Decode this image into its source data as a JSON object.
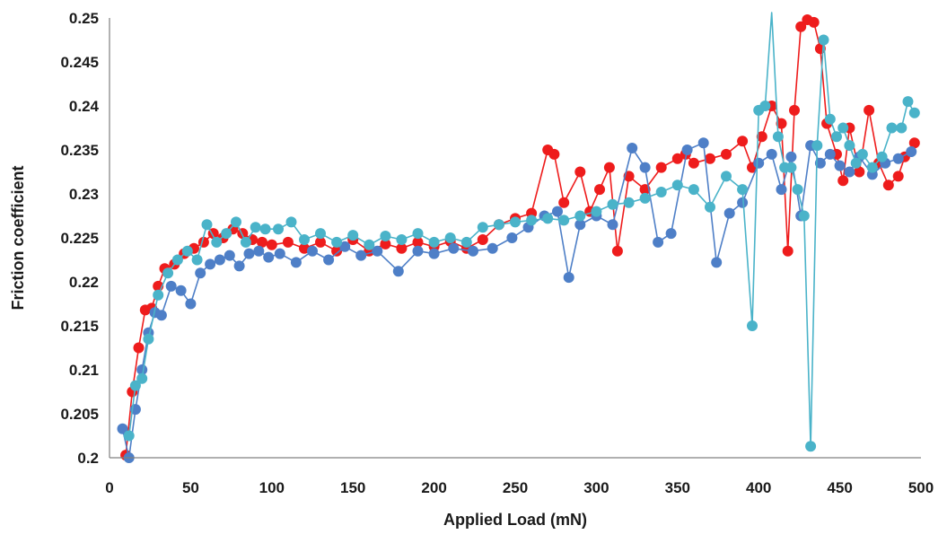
{
  "chart_data": {
    "type": "scatter",
    "title": "",
    "xlabel": "Applied Load (mN)",
    "ylabel": "Friction coefficient",
    "xlim": [
      0,
      500
    ],
    "ylim": [
      0.2,
      0.25
    ],
    "x_ticks": [
      "0",
      "50",
      "100",
      "150",
      "200",
      "250",
      "300",
      "350",
      "400",
      "450",
      "500"
    ],
    "y_ticks": [
      "0.2",
      "0.205",
      "0.21",
      "0.215",
      "0.22",
      "0.225",
      "0.23",
      "0.235",
      "0.24",
      "0.245",
      "0.25"
    ],
    "grid": false,
    "legend": false,
    "colors": [
      "#ee1c1c",
      "#4e7fc7",
      "#4ab3c9"
    ],
    "series": [
      {
        "color": "#ee1c1c",
        "x": [
          10,
          14,
          18,
          22,
          26,
          30,
          34,
          40,
          46,
          52,
          58,
          64,
          70,
          76,
          82,
          88,
          94,
          100,
          110,
          120,
          130,
          140,
          150,
          160,
          170,
          180,
          190,
          200,
          210,
          220,
          230,
          240,
          250,
          260,
          270,
          274,
          280,
          290,
          296,
          302,
          308,
          313,
          320,
          330,
          340,
          350,
          355,
          360,
          370,
          380,
          390,
          396,
          402,
          408,
          414,
          418,
          422,
          426,
          430,
          434,
          438,
          442,
          448,
          452,
          456,
          462,
          468,
          474,
          480,
          486,
          490,
          496
        ],
        "y": [
          0.2003,
          0.2075,
          0.2125,
          0.2168,
          0.217,
          0.2195,
          0.2215,
          0.222,
          0.2232,
          0.2238,
          0.2245,
          0.2255,
          0.225,
          0.226,
          0.2255,
          0.2248,
          0.2245,
          0.2242,
          0.2245,
          0.2238,
          0.2245,
          0.2235,
          0.2248,
          0.2235,
          0.2243,
          0.2238,
          0.2245,
          0.224,
          0.2246,
          0.2238,
          0.2248,
          0.2265,
          0.2272,
          0.2278,
          0.235,
          0.2345,
          0.229,
          0.2325,
          0.228,
          0.2305,
          0.233,
          0.2235,
          0.232,
          0.2305,
          0.233,
          0.234,
          0.2345,
          0.2335,
          0.234,
          0.2345,
          0.236,
          0.233,
          0.2365,
          0.24,
          0.238,
          0.2235,
          0.2395,
          0.249,
          0.2498,
          0.2495,
          0.2465,
          0.238,
          0.2345,
          0.2315,
          0.2375,
          0.2325,
          0.2395,
          0.2335,
          0.231,
          0.232,
          0.2342,
          0.2358
        ]
      },
      {
        "color": "#4e7fc7",
        "x": [
          8,
          12,
          16,
          20,
          24,
          28,
          32,
          38,
          44,
          50,
          56,
          62,
          68,
          74,
          80,
          86,
          92,
          98,
          105,
          115,
          125,
          135,
          145,
          155,
          165,
          178,
          190,
          200,
          212,
          224,
          236,
          248,
          258,
          268,
          276,
          283,
          290,
          300,
          310,
          322,
          330,
          338,
          346,
          356,
          366,
          374,
          382,
          390,
          400,
          408,
          414,
          420,
          426,
          432,
          438,
          444,
          450,
          456,
          462,
          470,
          478,
          486,
          494
        ],
        "y": [
          0.2033,
          0.2,
          0.2055,
          0.21,
          0.2142,
          0.2165,
          0.2162,
          0.2195,
          0.219,
          0.2175,
          0.221,
          0.222,
          0.2225,
          0.223,
          0.2218,
          0.2232,
          0.2235,
          0.2228,
          0.2232,
          0.2222,
          0.2235,
          0.2225,
          0.224,
          0.223,
          0.2235,
          0.2212,
          0.2235,
          0.2232,
          0.2238,
          0.2235,
          0.2238,
          0.225,
          0.2262,
          0.2275,
          0.228,
          0.2205,
          0.2265,
          0.2275,
          0.2265,
          0.2352,
          0.233,
          0.2245,
          0.2255,
          0.235,
          0.2358,
          0.2222,
          0.2278,
          0.229,
          0.2335,
          0.2345,
          0.2305,
          0.2342,
          0.2275,
          0.2355,
          0.2335,
          0.2345,
          0.2332,
          0.2325,
          0.2342,
          0.2322,
          0.2335,
          0.234,
          0.2348
        ]
      },
      {
        "color": "#4ab3c9",
        "x": [
          12,
          16,
          20,
          24,
          30,
          36,
          42,
          48,
          54,
          60,
          66,
          72,
          78,
          84,
          90,
          96,
          104,
          112,
          120,
          130,
          140,
          150,
          160,
          170,
          180,
          190,
          200,
          210,
          220,
          230,
          240,
          250,
          260,
          270,
          280,
          290,
          300,
          310,
          320,
          330,
          340,
          350,
          360,
          370,
          380,
          390,
          396,
          400,
          404,
          408,
          412,
          416,
          420,
          424,
          428,
          432,
          436,
          440,
          444,
          448,
          452,
          456,
          460,
          464,
          470,
          476,
          482,
          488,
          492,
          496
        ],
        "y": [
          0.2025,
          0.2082,
          0.209,
          0.2135,
          0.2185,
          0.221,
          0.2225,
          0.2235,
          0.2225,
          0.2265,
          0.2245,
          0.2255,
          0.2268,
          0.2245,
          0.2262,
          0.226,
          0.226,
          0.2268,
          0.2248,
          0.2255,
          0.2245,
          0.2253,
          0.2242,
          0.2252,
          0.2248,
          0.2255,
          0.2245,
          0.225,
          0.2245,
          0.2262,
          0.2265,
          0.2268,
          0.227,
          0.2272,
          0.227,
          0.2275,
          0.228,
          0.2288,
          0.229,
          0.2295,
          0.2302,
          0.231,
          0.2305,
          0.2285,
          0.232,
          0.2305,
          0.215,
          0.2395,
          0.24,
          0.2512,
          0.2365,
          0.233,
          0.233,
          0.2305,
          0.2275,
          0.2013,
          0.2355,
          0.2475,
          0.2385,
          0.2365,
          0.2375,
          0.2355,
          0.2335,
          0.2345,
          0.233,
          0.2342,
          0.2375,
          0.2375,
          0.2405,
          0.2392
        ]
      }
    ]
  }
}
